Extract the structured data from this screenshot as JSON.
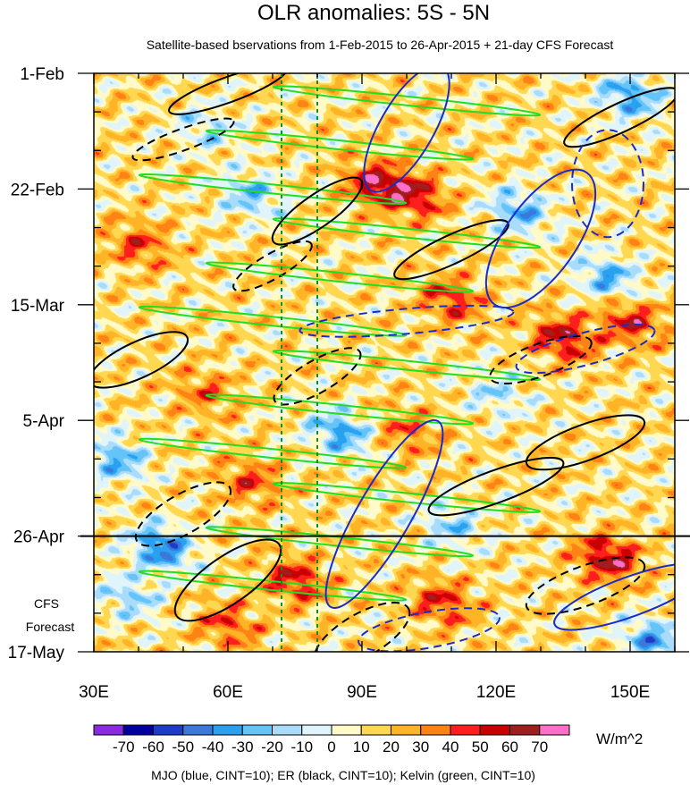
{
  "chart_data": {
    "type": "heatmap",
    "title": "OLR anomalies: 5S - 5N",
    "subtitle": "Satellite-based bservations from 1-Feb-2015 to 26-Apr-2015 + 21-day CFS Forecast",
    "x_ticks": [
      {
        "label": "30E",
        "value": 30
      },
      {
        "label": "60E",
        "value": 60
      },
      {
        "label": "90E",
        "value": 90
      },
      {
        "label": "120E",
        "value": 120
      },
      {
        "label": "150E",
        "value": 150
      }
    ],
    "y_ticks": [
      {
        "label": "1-Feb",
        "value": 0
      },
      {
        "label": "22-Feb",
        "value": 21
      },
      {
        "label": "15-Mar",
        "value": 42
      },
      {
        "label": "5-Apr",
        "value": 63
      },
      {
        "label": "26-Apr",
        "value": 84
      },
      {
        "label": "17-May",
        "value": 105
      }
    ],
    "xlim": [
      30,
      160
    ],
    "ylim": [
      0,
      105
    ],
    "y_unit": "days since 1-Feb-2015 (downward)",
    "forecast_start": 84,
    "forecast_label_lines": [
      "CFS",
      "Forecast"
    ],
    "reference_lines_lon": [
      72,
      80
    ],
    "colorbar": {
      "unit": "W/m^2",
      "levels": [
        -70,
        -60,
        -50,
        -40,
        -30,
        -20,
        -10,
        0,
        10,
        20,
        30,
        40,
        50,
        60,
        70
      ],
      "level_labels": [
        "-70",
        "-60",
        "-50",
        "-40",
        "-30",
        "-20",
        "-10",
        "0",
        "10",
        "20",
        "30",
        "40",
        "50",
        "60",
        "70"
      ],
      "colors": [
        "#8a2be2",
        "#0000a0",
        "#1e3cc8",
        "#3c78dc",
        "#2aa0f0",
        "#64c4f8",
        "#a8dcfa",
        "#e0f4fc",
        "#fffac8",
        "#ffd750",
        "#ffb428",
        "#ff8214",
        "#ff1e1e",
        "#c80000",
        "#a01e1e",
        "#ff6ec8"
      ]
    },
    "legend_text": "MJO (blue, CINT=10); ER (black, CINT=10); Kelvin (green, CINT=10)",
    "series": [
      {
        "name": "MJO",
        "color": "#1c2bc8",
        "cint": 10
      },
      {
        "name": "ER",
        "color": "#000000",
        "cint": 10
      },
      {
        "name": "Kelvin",
        "color": "#22dd22",
        "cint": 10
      }
    ],
    "anomaly_features": [
      {
        "lon": 93,
        "day": 20,
        "value": 45
      },
      {
        "lon": 102,
        "day": 22,
        "value": 40
      },
      {
        "lon": 40,
        "day": 31,
        "value": 30
      },
      {
        "lon": 135,
        "day": 48,
        "value": 45
      },
      {
        "lon": 150,
        "day": 45,
        "value": 40
      },
      {
        "lon": 110,
        "day": 41,
        "value": 35
      },
      {
        "lon": 65,
        "day": 74,
        "value": 30
      },
      {
        "lon": 75,
        "day": 92,
        "value": 40
      },
      {
        "lon": 145,
        "day": 88,
        "value": 50
      },
      {
        "lon": 60,
        "day": 100,
        "value": 30
      },
      {
        "lon": 108,
        "day": 96,
        "value": 35
      },
      {
        "lon": 100,
        "day": 65,
        "value": 25
      },
      {
        "lon": 55,
        "day": 58,
        "value": 25
      },
      {
        "lon": 150,
        "day": 4,
        "value": -45
      },
      {
        "lon": 125,
        "day": 25,
        "value": -40
      },
      {
        "lon": 145,
        "day": 37,
        "value": -40
      },
      {
        "lon": 85,
        "day": 65,
        "value": -45
      },
      {
        "lon": 65,
        "day": 22,
        "value": -35
      },
      {
        "lon": 45,
        "day": 86,
        "value": -55
      },
      {
        "lon": 55,
        "day": 10,
        "value": -25
      },
      {
        "lon": 35,
        "day": 70,
        "value": -40
      },
      {
        "lon": 110,
        "day": 82,
        "value": -30
      },
      {
        "lon": 155,
        "day": 103,
        "value": -45
      },
      {
        "lon": 38,
        "day": 95,
        "value": -30
      },
      {
        "lon": 120,
        "day": 58,
        "value": -25
      }
    ]
  }
}
